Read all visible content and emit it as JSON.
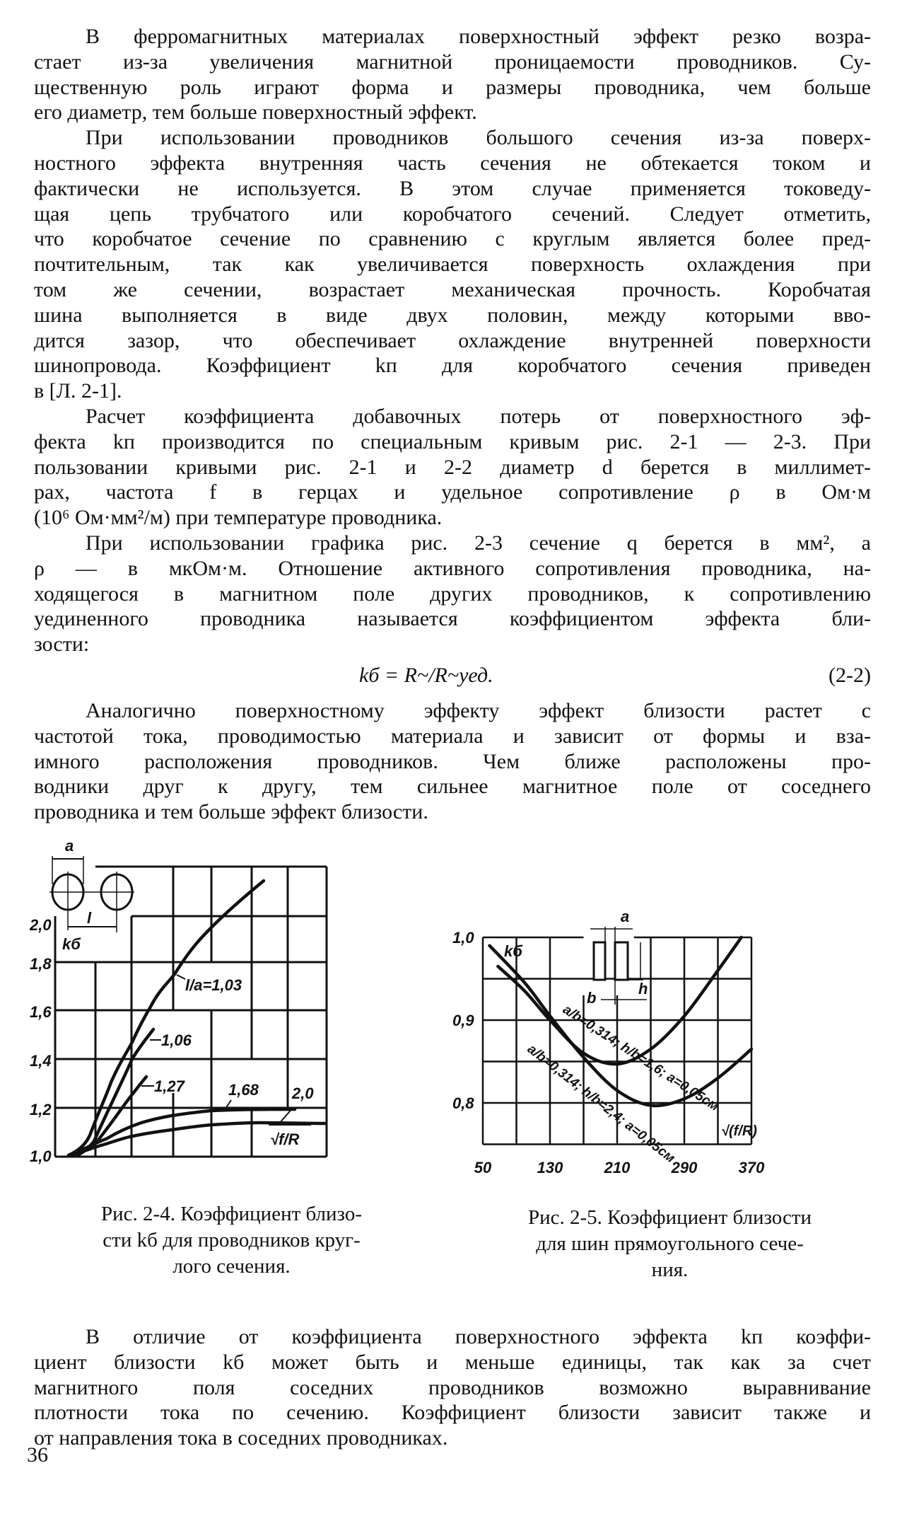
{
  "paragraphs_top": [
    {
      "lines": [
        "В ферромагнитных материалах поверхностный эффект резко возра-",
        "стает из-за увеличения магнитной проницаемости проводников. Су-",
        "щественную роль играют форма и размеры проводника, чем больше",
        "его диаметр, тем больше поверхностный эффект."
      ]
    },
    {
      "lines": [
        "При использовании проводников большого сечения из-за поверх-",
        "ностного эффекта внутренняя часть сечения не обтекается током и",
        "фактически не используется. В этом случае применяется токоведу-",
        "щая цепь трубчатого или коробчатого сечений. Следует отметить,",
        "что коробчатое сечение по сравнению с круглым является более пред-",
        "почтительным, так как увеличивается поверхность охлаждения при",
        "том же сечении, возрастает механическая прочность. Коробчатая",
        "шина выполняется в виде двух половин, между которыми вво-",
        "дится зазор, что обеспечивает охлаждение внутренней поверхности",
        "шинопровода. Коэффициент kп для коробчатого сечения приведен",
        "в [Л. 2-1]."
      ]
    },
    {
      "lines": [
        "Расчет коэффициента добавочных потерь от поверхностного эф-",
        "фекта kп производится по специальным кривым рис. 2-1 — 2-3. При",
        "пользовании кривыми рис. 2-1 и 2-2 диаметр d берется в миллимет-",
        "рах, частота f в герцах и удельное сопротивление ρ в Ом·м",
        "(10⁶ Ом·мм²/м) при температуре проводника."
      ]
    },
    {
      "lines": [
        "При использовании графика рис. 2-3 сечение q берется в мм², а",
        "ρ — в мкОм·м. Отношение активного сопротивления проводника, на-",
        "ходящегося в магнитном поле других проводников, к сопротивлению",
        "уединенного проводника называется коэффициентом эффекта бли-",
        "зости:"
      ]
    }
  ],
  "formula": {
    "expression": "kб = R~/R~уед.",
    "number": "(2-2)"
  },
  "paragraphs_mid": [
    {
      "lines": [
        "Аналогично поверхностному эффекту эффект близости растет с",
        "частотой тока, проводимостью материала и зависит от формы и вза-",
        "имного расположения проводников. Чем ближе расположены про-",
        "водники друг к другу, тем сильнее магнитное поле от соседнего",
        "проводника и тем больше эффект близости."
      ]
    }
  ],
  "figure_2_4": {
    "caption": [
      "Рис. 2-4. Коэффициент близо-",
      "сти kб для проводников круг-",
      "лого сечения."
    ],
    "y_ticks": [
      "2,0",
      "1,8",
      "1,6",
      "1,4",
      "1,2",
      "1,0"
    ],
    "y_label": "kб",
    "x_label": "√f/R",
    "dim_a": "a",
    "dim_l": "l",
    "curve_labels": [
      "l/a=1,03",
      "1,06",
      "1,27",
      "1,68",
      "2,0"
    ]
  },
  "figure_2_5": {
    "caption": [
      "Рис. 2-5. Коэффициент близости",
      "для шин прямоугольного сече-",
      "ния."
    ],
    "dim_a": "a",
    "dim_b": "b",
    "dim_h": "h"
  },
  "chart_data": {
    "type": "line",
    "title": "",
    "ylabel": "kб",
    "xlabel": "√(f/R)",
    "x_ticks": [
      50,
      130,
      210,
      290,
      370
    ],
    "y_ticks": [
      "1,0",
      "0,9",
      "0,8"
    ],
    "xlim": [
      50,
      370
    ],
    "ylim": [
      0.75,
      1.0
    ],
    "grid": true,
    "series": [
      {
        "name": "a/b=0,314; h/b=1,6; a=0,05см",
        "x": [
          68,
          100,
          130,
          170,
          210,
          250,
          290,
          330,
          358
        ],
        "y": [
          0.965,
          0.935,
          0.9,
          0.86,
          0.847,
          0.865,
          0.905,
          0.96,
          1.0
        ]
      },
      {
        "name": "a/b=0,314; h/b=2,4; a=0,05см",
        "x": [
          58,
          100,
          130,
          170,
          210,
          250,
          290,
          330,
          370
        ],
        "y": [
          0.99,
          0.945,
          0.905,
          0.855,
          0.815,
          0.797,
          0.805,
          0.83,
          0.865
        ]
      }
    ]
  },
  "paragraphs_bottom": [
    {
      "lines": [
        "В отличие от коэффициента поверхностного эффекта kп коэффи-",
        "циент близости kб может быть и меньше единицы, так как за счет",
        "магнитного поля соседних проводников возможно выравнивание",
        "плотности тока по сечению. Коэффициент близости зависит также и",
        "от направления тока в соседних проводниках."
      ]
    }
  ],
  "page_number": "36"
}
